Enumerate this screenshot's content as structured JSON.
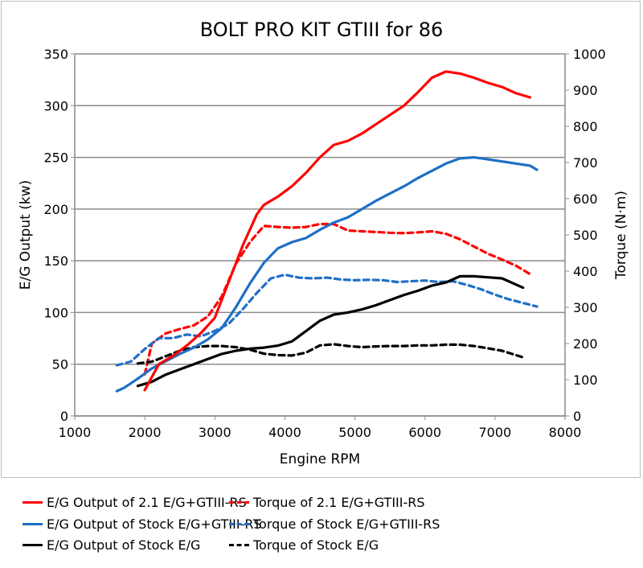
{
  "chart_data": {
    "type": "line",
    "title": "BOLT PRO KIT GTIII for 86",
    "xlabel": "Engine RPM",
    "ylabel": "E/G Output (kw)",
    "y2label": "Torque (N·m)",
    "xlim": [
      1000,
      8000
    ],
    "ylim": [
      0,
      350
    ],
    "y2lim": [
      0,
      1000
    ],
    "xticks": [
      "1000",
      "2000",
      "3000",
      "4000",
      "5000",
      "6000",
      "7000",
      "8000"
    ],
    "yticks": [
      "0",
      "50",
      "100",
      "150",
      "200",
      "250",
      "300",
      "350"
    ],
    "y2ticks": [
      "0",
      "100",
      "200",
      "300",
      "400",
      "500",
      "600",
      "700",
      "800",
      "900",
      "1000"
    ],
    "grid": true,
    "legend_position": "bottom",
    "series": [
      {
        "name": "E/G Output of 2.1 E/G+GTIII-RS",
        "axis": "left",
        "color": "#ff0000",
        "dash": false,
        "x": [
          2000,
          2200,
          2400,
          2600,
          2800,
          3000,
          3200,
          3400,
          3600,
          3700,
          3900,
          4100,
          4300,
          4500,
          4700,
          4900,
          5100,
          5300,
          5500,
          5700,
          5900,
          6100,
          6300,
          6500,
          6700,
          6900,
          7100,
          7300,
          7500
        ],
        "y": [
          25,
          50,
          58,
          68,
          80,
          95,
          130,
          165,
          195,
          204,
          212,
          222,
          235,
          250,
          262,
          266,
          273,
          282,
          291,
          300,
          313,
          327,
          333,
          331,
          327,
          322,
          318,
          312,
          308
        ]
      },
      {
        "name": "E/G Output of Stock E/G+GTIII-RS",
        "axis": "left",
        "color": "#1f6fc6",
        "dash": false,
        "x": [
          1600,
          1700,
          1900,
          2100,
          2300,
          2500,
          2700,
          2900,
          3100,
          3300,
          3500,
          3700,
          3900,
          4100,
          4300,
          4500,
          4700,
          4900,
          5100,
          5300,
          5500,
          5700,
          5900,
          6100,
          6300,
          6500,
          6700,
          6900,
          7100,
          7300,
          7500,
          7600
        ],
        "y": [
          24,
          27,
          36,
          46,
          53,
          60,
          66,
          74,
          85,
          105,
          128,
          148,
          162,
          168,
          172,
          180,
          187,
          192,
          200,
          208,
          215,
          222,
          230,
          237,
          244,
          249,
          250,
          248,
          246,
          244,
          242,
          238
        ]
      },
      {
        "name": "E/G Output of Stock E/G",
        "axis": "left",
        "color": "#000000",
        "dash": false,
        "x": [
          1900,
          2100,
          2300,
          2500,
          2700,
          2900,
          3100,
          3300,
          3500,
          3700,
          3900,
          4100,
          4300,
          4500,
          4700,
          4900,
          5100,
          5300,
          5500,
          5700,
          5900,
          6100,
          6300,
          6500,
          6700,
          6900,
          7100,
          7300,
          7400
        ],
        "y": [
          29,
          33,
          40,
          45,
          50,
          55,
          60,
          63,
          65,
          66,
          68,
          72,
          82,
          92,
          98,
          100,
          103,
          107,
          112,
          117,
          121,
          126,
          129,
          135,
          135,
          134,
          133,
          127,
          124
        ]
      },
      {
        "name": "Torque of 2.1 E/G+GTIII-RS",
        "axis": "right",
        "color": "#ff0000",
        "dash": true,
        "x": [
          2000,
          2100,
          2300,
          2500,
          2700,
          2900,
          3100,
          3300,
          3500,
          3700,
          3900,
          4100,
          4300,
          4500,
          4700,
          4900,
          5100,
          5300,
          5500,
          5700,
          5900,
          6100,
          6300,
          6500,
          6700,
          6900,
          7100,
          7300,
          7500
        ],
        "y": [
          115,
          200,
          228,
          240,
          250,
          275,
          330,
          420,
          480,
          525,
          522,
          520,
          522,
          530,
          530,
          512,
          510,
          508,
          506,
          505,
          507,
          510,
          503,
          488,
          468,
          448,
          432,
          415,
          392
        ]
      },
      {
        "name": "Torque of Stock E/G+GTIII-RS",
        "axis": "right",
        "color": "#1f6fc6",
        "dash": true,
        "x": [
          1600,
          1800,
          2000,
          2200,
          2400,
          2600,
          2800,
          3000,
          3200,
          3400,
          3600,
          3800,
          4000,
          4200,
          4400,
          4600,
          4800,
          5000,
          5200,
          5400,
          5600,
          5800,
          6000,
          6200,
          6400,
          6600,
          6800,
          7000,
          7200,
          7400,
          7600
        ],
        "y": [
          140,
          150,
          185,
          215,
          215,
          225,
          220,
          235,
          255,
          295,
          340,
          380,
          390,
          382,
          380,
          382,
          377,
          375,
          376,
          375,
          370,
          372,
          374,
          370,
          372,
          362,
          350,
          335,
          322,
          312,
          302
        ]
      },
      {
        "name": "Torque of Stock E/G",
        "axis": "right",
        "color": "#000000",
        "dash": true,
        "x": [
          1900,
          2100,
          2300,
          2500,
          2700,
          2900,
          3100,
          3300,
          3500,
          3700,
          3900,
          4100,
          4300,
          4500,
          4700,
          4900,
          5100,
          5300,
          5500,
          5700,
          5900,
          6100,
          6300,
          6500,
          6700,
          6900,
          7100,
          7300,
          7400
        ],
        "y": [
          145,
          150,
          165,
          180,
          190,
          193,
          193,
          190,
          183,
          172,
          168,
          167,
          175,
          195,
          198,
          193,
          190,
          192,
          193,
          193,
          195,
          195,
          197,
          197,
          193,
          187,
          180,
          168,
          162
        ]
      }
    ]
  }
}
